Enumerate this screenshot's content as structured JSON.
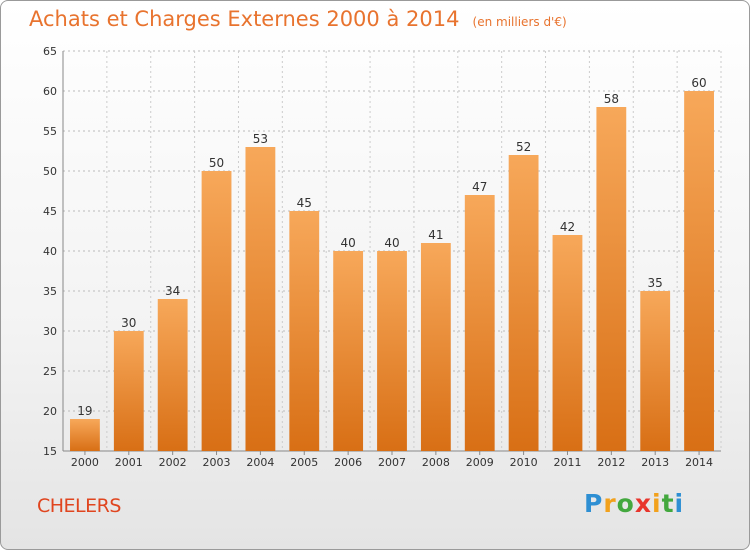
{
  "chart_data": {
    "type": "bar",
    "title": "Achats et Charges Externes 2000 à 2014",
    "unit_note": "(en milliers d'€)",
    "categories": [
      "2000",
      "2001",
      "2002",
      "2003",
      "2004",
      "2005",
      "2006",
      "2007",
      "2008",
      "2009",
      "2010",
      "2011",
      "2012",
      "2013",
      "2014"
    ],
    "values": [
      19,
      30,
      34,
      50,
      53,
      45,
      40,
      40,
      41,
      47,
      52,
      42,
      58,
      35,
      60
    ],
    "ylim": [
      15,
      65
    ],
    "yticks": [
      15,
      20,
      25,
      30,
      35,
      40,
      45,
      50,
      55,
      60,
      65
    ],
    "grid": true,
    "bar_color_top": "#f7a85a",
    "bar_color_bottom": "#d86f15"
  },
  "footer": {
    "place": "CHELERS",
    "logo": {
      "letters": [
        "P",
        "r",
        "o",
        "x",
        "i",
        "t",
        "i"
      ],
      "colors": [
        "#2e8fd3",
        "#f2a11c",
        "#43a83e",
        "#e8352c",
        "#f2a11c",
        "#43a83e",
        "#2e8fd3"
      ]
    }
  }
}
